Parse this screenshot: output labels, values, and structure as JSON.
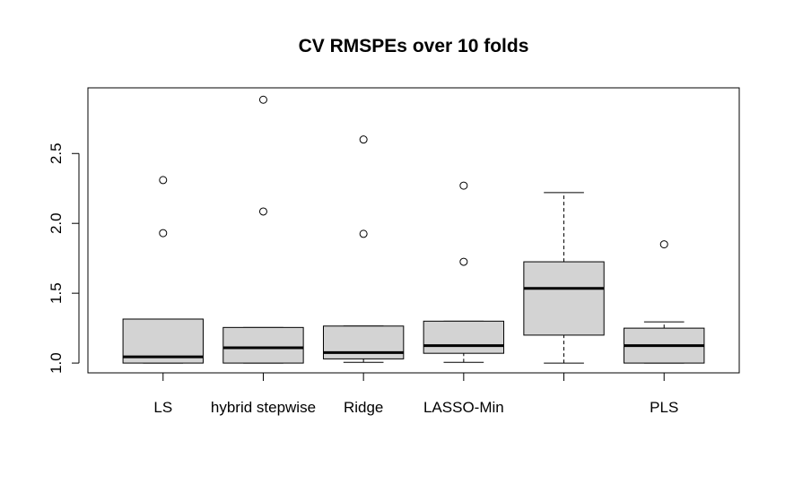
{
  "chart_data": {
    "type": "boxplot",
    "title": "CV RMSPEs over 10 folds",
    "xlabel": "",
    "ylabel": "",
    "ylim": [
      0.93,
      2.97
    ],
    "yticks": [
      1.0,
      1.5,
      2.0,
      2.5
    ],
    "ytick_labels": [
      "1.0",
      "1.5",
      "2.0",
      "2.5"
    ],
    "categories": [
      "LS",
      "hybrid stepwise",
      "Ridge",
      "LASSO-Min",
      "",
      "PLS"
    ],
    "boxes": [
      {
        "category": "LS",
        "whisker_low": 1.0,
        "q1": 1.0,
        "median": 1.045,
        "q3": 1.315,
        "whisker_high": 1.315,
        "outliers": [
          1.93,
          2.31
        ]
      },
      {
        "category": "hybrid stepwise",
        "whisker_low": 1.0,
        "q1": 1.0,
        "median": 1.11,
        "q3": 1.255,
        "whisker_high": 1.255,
        "outliers": [
          2.085,
          2.885
        ]
      },
      {
        "category": "Ridge",
        "whisker_low": 1.005,
        "q1": 1.03,
        "median": 1.075,
        "q3": 1.265,
        "whisker_high": 1.265,
        "outliers": [
          1.925,
          2.6
        ]
      },
      {
        "category": "LASSO-Min",
        "whisker_low": 1.005,
        "q1": 1.07,
        "median": 1.125,
        "q3": 1.3,
        "whisker_high": 1.3,
        "outliers": [
          1.725,
          2.27
        ]
      },
      {
        "category": "",
        "whisker_low": 1.0,
        "q1": 1.2,
        "median": 1.535,
        "q3": 1.725,
        "whisker_high": 2.22,
        "outliers": []
      },
      {
        "category": "PLS",
        "whisker_low": 1.0,
        "q1": 1.0,
        "median": 1.125,
        "q3": 1.25,
        "whisker_high": 1.295,
        "outliers": [
          1.85
        ]
      }
    ],
    "box_fill": "#d3d3d3",
    "grid": false,
    "legend": "none"
  }
}
